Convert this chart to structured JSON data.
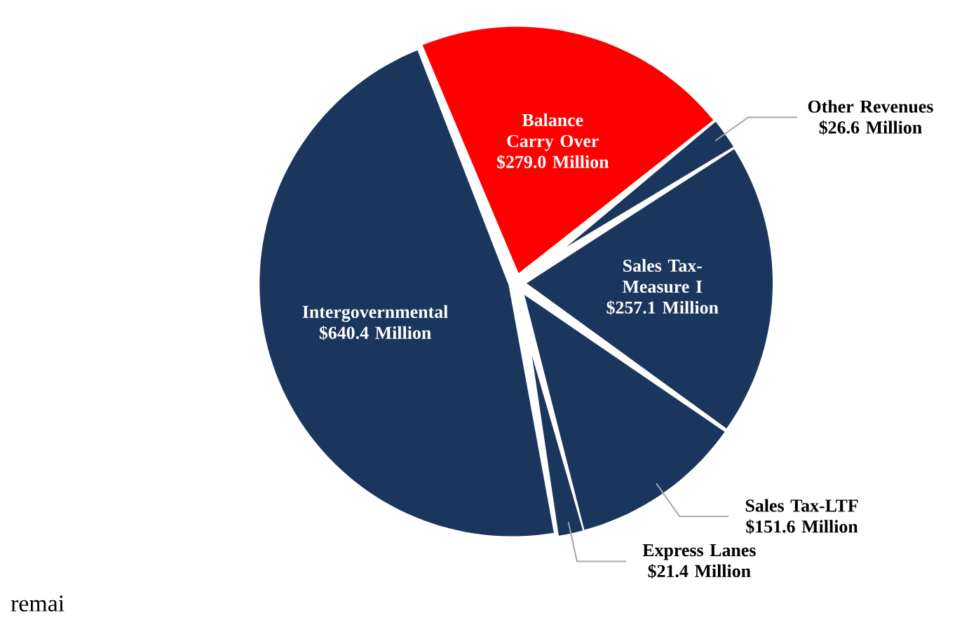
{
  "chart_data": {
    "type": "pie",
    "categories": [
      "Balance Carry Over",
      "Other Revenues",
      "Sales Tax-Measure I",
      "Sales Tax-LTF",
      "Express Lanes",
      "Intergovernmental"
    ],
    "values": [
      279.0,
      26.6,
      257.1,
      151.6,
      21.4,
      640.4
    ],
    "value_labels": [
      "$279.0 Million",
      "$26.6 Million",
      "$257.1 Million",
      "$151.6 Million",
      "$21.4 Million",
      "$640.4 Million"
    ],
    "colors": [
      "#ff0000",
      "#1b365d",
      "#1b365d",
      "#1b365d",
      "#1b365d",
      "#1b365d"
    ],
    "annotations": [
      "remai"
    ]
  }
}
